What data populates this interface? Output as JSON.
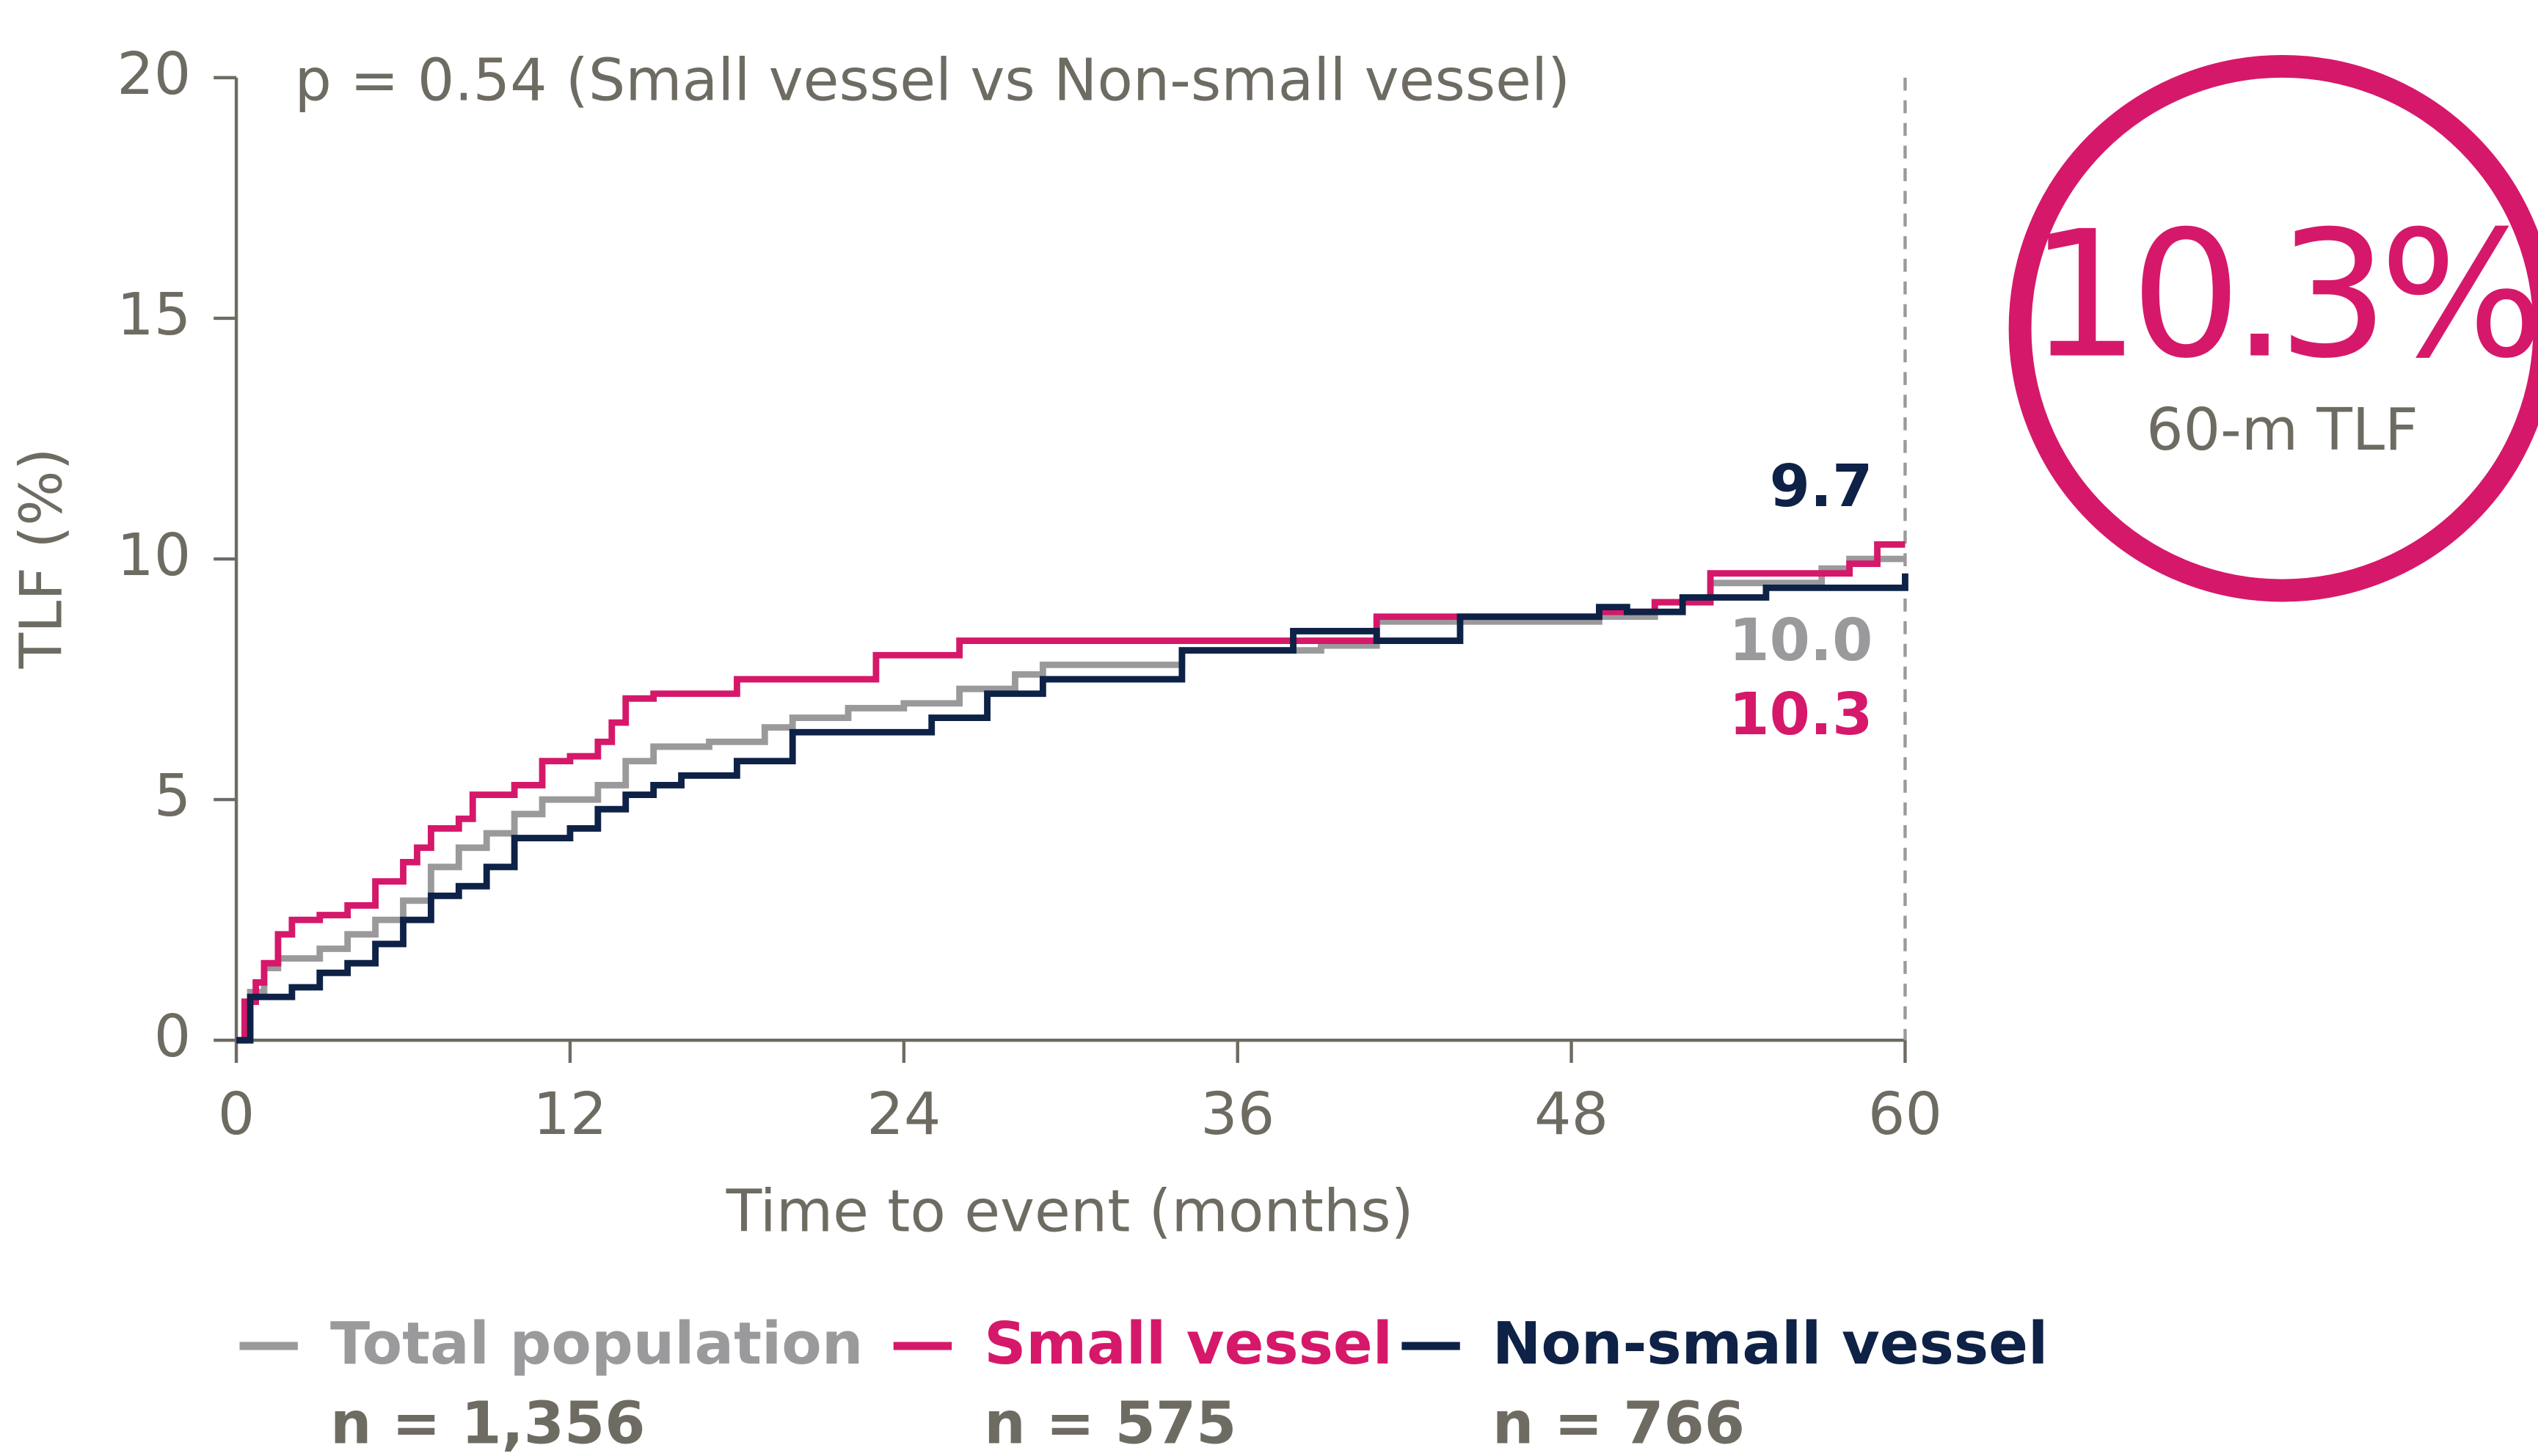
{
  "chart_data": {
    "type": "step",
    "subtitle": "p = 0.54 (Small vessel vs Non-small vessel)",
    "x_label": "Time to event (months)",
    "y_label": "TLF (%)",
    "xlim": [
      0,
      60
    ],
    "ylim": [
      0,
      20
    ],
    "xticks": [
      0,
      12,
      24,
      36,
      48,
      60
    ],
    "yticks": [
      0,
      5,
      10,
      15,
      20
    ],
    "highlight": {
      "value": "10.3%",
      "label": "60-m TLF",
      "color": "#d6186a"
    },
    "series": [
      {
        "name": "Total population",
        "n_label": "n = 1,356",
        "end_label": "10.0",
        "color": "#9a9a9c",
        "x": [
          0,
          0.5,
          1,
          1.5,
          3,
          4,
          5,
          6,
          7,
          8,
          9,
          10,
          11,
          13,
          14,
          15,
          17,
          19,
          20,
          22,
          24,
          26,
          28,
          29,
          34,
          39,
          41,
          49,
          51,
          53,
          57,
          58,
          60
        ],
        "values": [
          0,
          1.0,
          1.5,
          1.7,
          1.9,
          2.2,
          2.5,
          2.9,
          3.6,
          4.0,
          4.3,
          4.7,
          5.0,
          5.3,
          5.8,
          6.1,
          6.2,
          6.5,
          6.7,
          6.9,
          7.0,
          7.3,
          7.6,
          7.8,
          8.1,
          8.2,
          8.7,
          8.8,
          9.1,
          9.5,
          9.8,
          10.0,
          10.0
        ]
      },
      {
        "name": "Small vessel",
        "n_label": "n = 575",
        "end_label": "10.3",
        "color": "#d6186a",
        "x": [
          0,
          0.3,
          0.7,
          1,
          1.5,
          2,
          3,
          4,
          5,
          6,
          6.5,
          7,
          8,
          8.5,
          10,
          11,
          12,
          13,
          13.5,
          14,
          15,
          18,
          20,
          23,
          26,
          36,
          41,
          49,
          51,
          53,
          58,
          59,
          60
        ],
        "values": [
          0,
          0.8,
          1.2,
          1.6,
          2.2,
          2.5,
          2.6,
          2.8,
          3.3,
          3.7,
          4.0,
          4.4,
          4.6,
          5.1,
          5.3,
          5.8,
          5.9,
          6.2,
          6.6,
          7.1,
          7.2,
          7.5,
          7.5,
          8.0,
          8.3,
          8.3,
          8.8,
          8.9,
          9.1,
          9.7,
          9.9,
          10.3,
          10.3
        ]
      },
      {
        "name": "Non-small vessel",
        "n_label": "n = 766",
        "end_label": "9.7",
        "color": "#0e2146",
        "x": [
          0,
          0.5,
          2,
          3,
          4,
          5,
          6,
          7,
          8,
          9,
          10,
          12,
          13,
          14,
          15,
          16,
          18,
          20,
          25,
          27,
          29,
          34,
          38,
          41,
          44,
          49,
          50,
          52,
          55,
          60
        ],
        "values": [
          0,
          0.9,
          1.1,
          1.4,
          1.6,
          2.0,
          2.5,
          3.0,
          3.2,
          3.6,
          4.2,
          4.4,
          4.8,
          5.1,
          5.3,
          5.5,
          5.8,
          6.4,
          6.7,
          7.2,
          7.5,
          8.1,
          8.5,
          8.3,
          8.8,
          9.0,
          8.9,
          9.2,
          9.4,
          9.7
        ]
      }
    ]
  }
}
